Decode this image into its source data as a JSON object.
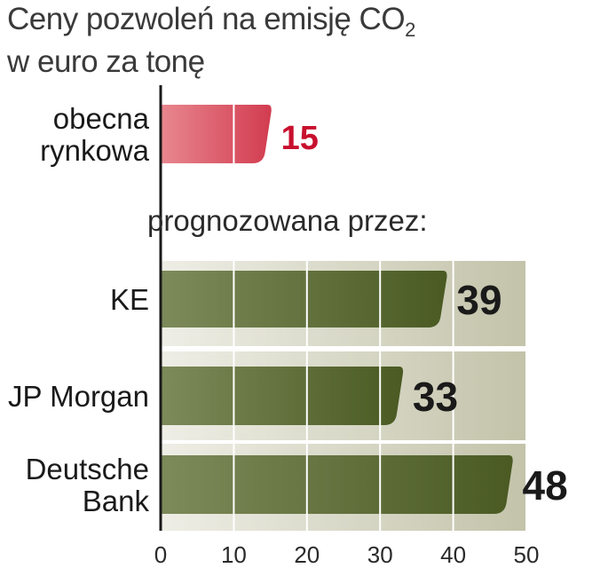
{
  "chart_data": {
    "type": "bar",
    "orientation": "horizontal",
    "title_line1": "Ceny pozwoleń na emisję CO",
    "title_subscript": "2",
    "title_line2": "w euro za tonę",
    "subheading": "prognozowana przez:",
    "categories": [
      [
        "obecna",
        "rynkowa"
      ],
      [
        "KE"
      ],
      [
        "JP Morgan"
      ],
      [
        "Deutsche",
        "Bank"
      ]
    ],
    "values": [
      15,
      39,
      33,
      48
    ],
    "value_labels": [
      "15",
      "39",
      "33",
      "48"
    ],
    "xlim": [
      0,
      50
    ],
    "ticks": [
      0,
      10,
      20,
      30,
      40,
      50
    ],
    "tick_labels": [
      "0",
      "10",
      "20",
      "30",
      "40",
      "50"
    ],
    "grid": true,
    "colors": {
      "current_bar_light": "#e8878f",
      "current_bar_dark": "#d23c50",
      "current_value": "#c8102e",
      "forecast_bar_light": "#7d8a5a",
      "forecast_bar_dark": "#4a5a22",
      "forecast_value": "#1a1a1a",
      "panel_light": "#eeeee6",
      "panel_dark": "#c3c3aa",
      "gridline": "#ffffff"
    }
  }
}
